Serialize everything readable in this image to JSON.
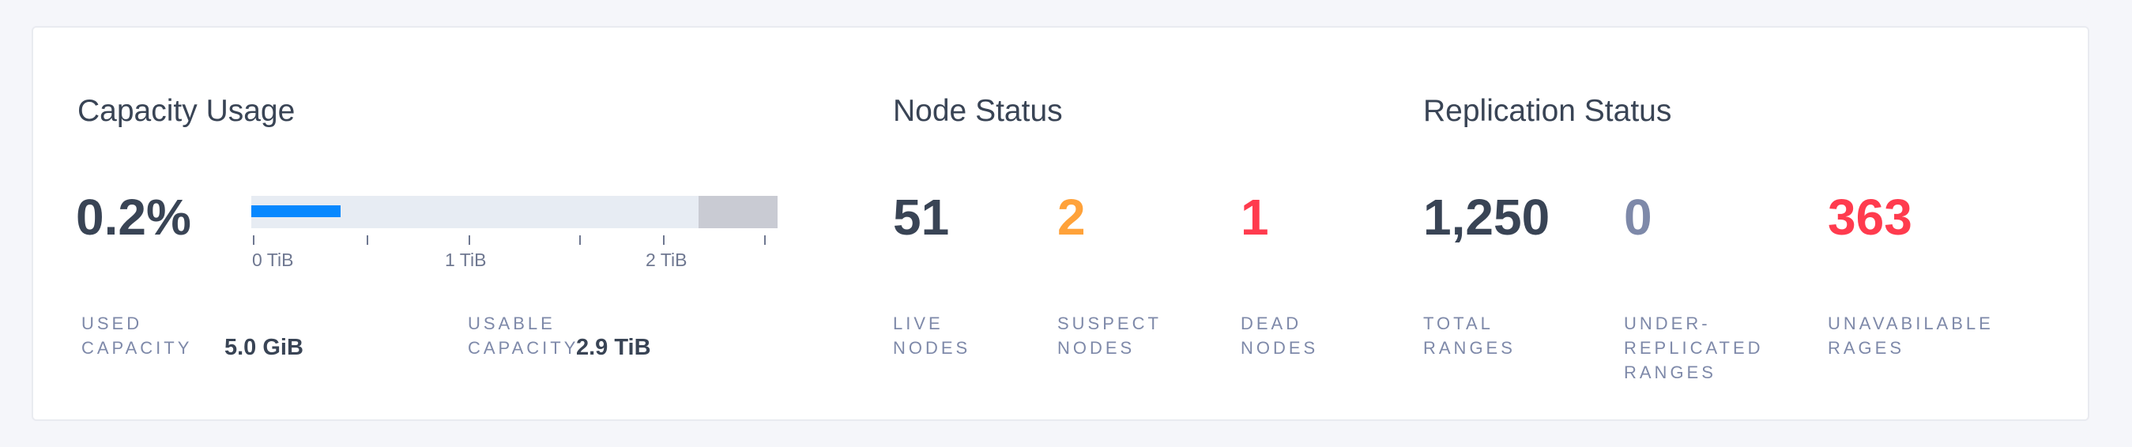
{
  "colors": {
    "text": "#394455",
    "label": "#7e89a9",
    "used": "#0788ff",
    "suspect": "#ffa23a",
    "dead": "#ff3b4e",
    "neutral": "#7e89a9"
  },
  "capacity": {
    "title": "Capacity Usage",
    "percent": "0.2%",
    "bar": {
      "used_fraction": 0.17,
      "reserved_fraction": 0.15,
      "tick_labels": [
        "0 TiB",
        "1 TiB",
        "2 TiB"
      ]
    },
    "used": {
      "label_line1": "USED",
      "label_line2": "CAPACITY",
      "value": "5.0 GiB"
    },
    "usable": {
      "label_line1": "USABLE",
      "label_line2": "CAPACITY",
      "value": "2.9 TiB"
    }
  },
  "nodes": {
    "title": "Node Status",
    "live": {
      "value": "51",
      "label_line1": "LIVE",
      "label_line2": "NODES"
    },
    "suspect": {
      "value": "2",
      "label_line1": "SUSPECT",
      "label_line2": "NODES"
    },
    "dead": {
      "value": "1",
      "label_line1": "DEAD",
      "label_line2": "NODES"
    }
  },
  "replication": {
    "title": "Replication Status",
    "total": {
      "value": "1,250",
      "label_line1": "TOTAL",
      "label_line2": "RANGES"
    },
    "under": {
      "value": "0",
      "label_line1": "UNDER-",
      "label_line2": "REPLICATED",
      "label_line3": "RANGES"
    },
    "unavailable": {
      "value": "363",
      "label_line1": "UNAVABILABLE",
      "label_line2": "RAGES"
    }
  }
}
